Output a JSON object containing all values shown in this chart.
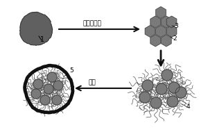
{
  "dark_gray": "#5a5a5a",
  "med_gray": "#7a7a7a",
  "body_gray": "#888888",
  "arrow_color": "#111111",
  "label_1": "1",
  "label_2": "2",
  "label_3": "3",
  "label_4": "4",
  "label_5": "5",
  "text_top": "砂磨与负载",
  "text_bottom": "包覆",
  "figsize": [
    3.0,
    2.0
  ],
  "dpi": 100
}
